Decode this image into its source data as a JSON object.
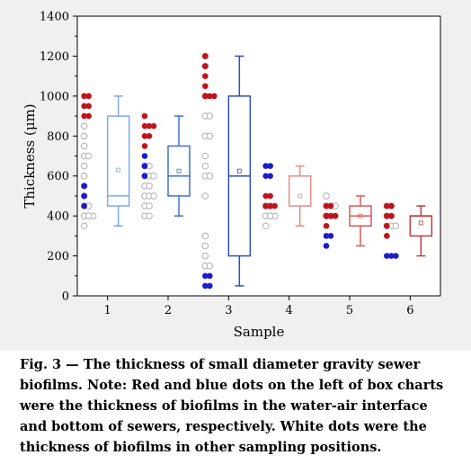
{
  "chart_data": {
    "type": "box",
    "xlabel": "Sample",
    "ylabel": "Thickness (μm)",
    "ylim": [
      0,
      1400
    ],
    "yticks": [
      0,
      200,
      400,
      600,
      800,
      1000,
      1200,
      1400
    ],
    "categories": [
      "1",
      "2",
      "3",
      "4",
      "5",
      "6"
    ],
    "grid": false,
    "boxes": [
      {
        "category": "1",
        "min": 350,
        "q1": 450,
        "median": 500,
        "mean": 630,
        "q3": 900,
        "max": 1000,
        "color": "#7fa8e8"
      },
      {
        "category": "2",
        "min": 400,
        "q1": 500,
        "median": 600,
        "mean": 625,
        "q3": 750,
        "max": 900,
        "color": "#3f6fd6"
      },
      {
        "category": "3",
        "min": 50,
        "q1": 200,
        "median": 600,
        "mean": 625,
        "q3": 1000,
        "max": 1200,
        "color": "#2a4fc4"
      },
      {
        "category": "4",
        "min": 350,
        "q1": 450,
        "median": 600,
        "mean": 500,
        "q3": 600,
        "max": 650,
        "color": "#e88a8a"
      },
      {
        "category": "5",
        "min": 250,
        "q1": 350,
        "median": 400,
        "mean": 400,
        "q3": 450,
        "max": 500,
        "color": "#d65a5a"
      },
      {
        "category": "6",
        "min": 200,
        "q1": 300,
        "median": 400,
        "mean": 365,
        "q3": 400,
        "max": 450,
        "color": "#c83a3a"
      }
    ],
    "points": [
      {
        "category": "1",
        "red": [
          1000,
          1000,
          950,
          950,
          900,
          900
        ],
        "blue": [
          550,
          500,
          450
        ],
        "white": [
          850,
          800,
          750,
          700,
          700,
          650,
          600,
          550,
          500,
          450,
          450,
          400,
          400,
          400,
          400,
          400,
          350
        ]
      },
      {
        "category": "2",
        "red": [
          900,
          850,
          850,
          850,
          800,
          800,
          750
        ],
        "blue": [
          700,
          650,
          600
        ],
        "white": [
          650,
          650,
          600,
          600,
          600,
          550,
          550,
          500,
          500,
          500,
          450,
          450,
          400,
          400
        ]
      },
      {
        "category": "3",
        "red": [
          1200,
          1150,
          1100,
          1050,
          1000,
          1000,
          1000
        ],
        "blue": [
          100,
          100,
          50,
          50
        ],
        "white": [
          1200,
          1150,
          1000,
          900,
          900,
          800,
          800,
          700,
          650,
          600,
          600,
          500,
          300,
          250,
          200,
          150,
          150
        ]
      },
      {
        "category": "4",
        "red": [
          500,
          500,
          450,
          450,
          450,
          450
        ],
        "blue": [
          650,
          650,
          600,
          600
        ],
        "white": [
          450,
          450,
          400,
          400,
          400,
          400,
          400,
          350
        ]
      },
      {
        "category": "5",
        "red": [
          450,
          450,
          400,
          400,
          400,
          400,
          350
        ],
        "blue": [
          300,
          300,
          250
        ],
        "white": [
          500,
          450,
          450,
          450,
          400,
          400,
          400,
          400
        ]
      },
      {
        "category": "6",
        "red": [
          450,
          450,
          400,
          400,
          350,
          300
        ],
        "blue": [
          200,
          200,
          200
        ],
        "white": [
          450,
          450,
          400,
          400,
          350,
          350,
          350
        ]
      }
    ],
    "colors": {
      "red_dot": "#c0141c",
      "blue_dot": "#1c1ccc",
      "white_dot_stroke": "#b0b0b0"
    }
  },
  "caption": {
    "text": "Fig. 3 — The thickness of small diameter gravity sewer biofilms. Note: Red and blue dots on the left of box charts were the thickness of biofilms in the water-air interface and bottom of sewers, respectively. White dots were the thickness of biofilms in other sampling positions."
  }
}
